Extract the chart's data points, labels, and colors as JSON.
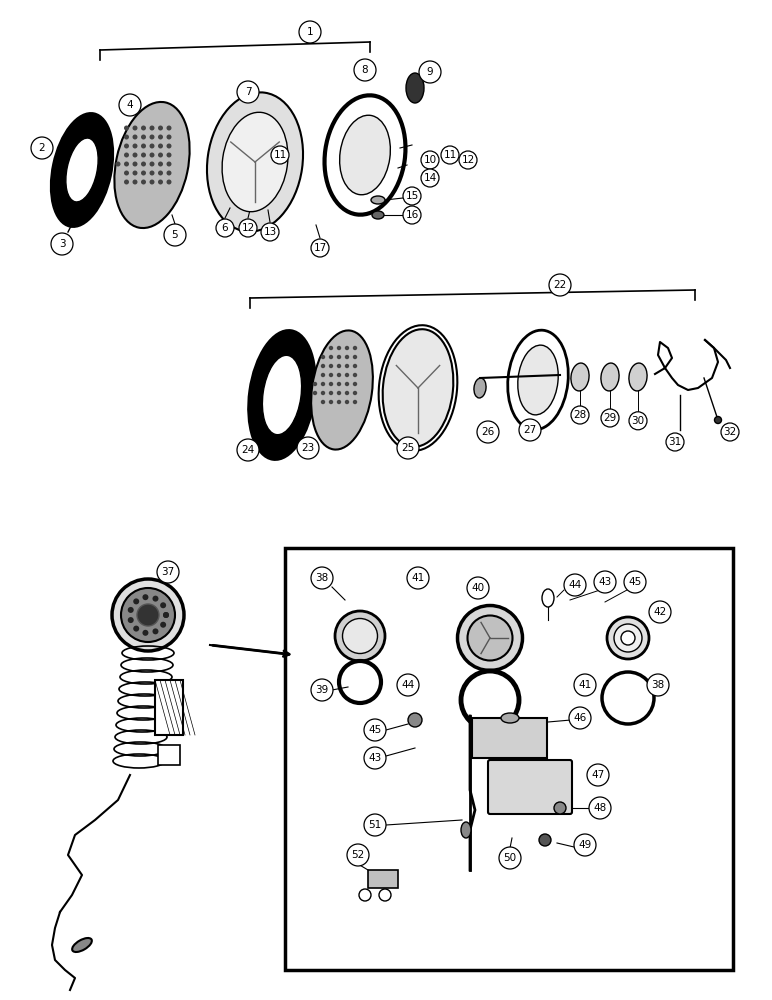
{
  "bg_color": "#ffffff",
  "line_color": "#000000",
  "fig_width": 7.72,
  "fig_height": 10.0,
  "dpi": 100
}
